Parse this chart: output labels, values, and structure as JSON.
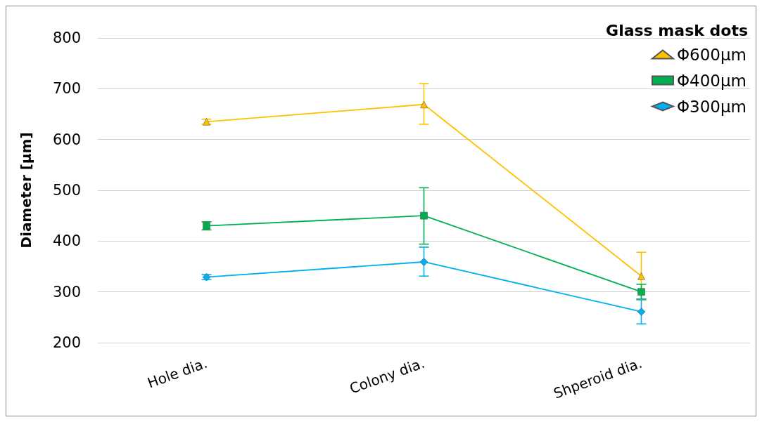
{
  "chart_data": {
    "type": "line",
    "ylabel": "Diameter [μm]",
    "legend_title": "Glass mask dots",
    "legend": "top right",
    "grid": "y",
    "line_style": "solid",
    "categories": [
      "Hole dia.",
      "Colony dia.",
      "Shperoid dia."
    ],
    "ylim": [
      200,
      800
    ],
    "yticks": [
      200,
      300,
      400,
      500,
      600,
      700,
      800
    ],
    "series": [
      {
        "name": "Φ600μm",
        "color": "#ffc000",
        "marker": "triangle",
        "values": [
          635,
          669,
          331
        ],
        "errors": [
          5,
          [
            630,
            710
          ],
          47
        ]
      },
      {
        "name": "Φ400μm",
        "color": "#00b050",
        "marker": "square",
        "values": [
          430,
          450,
          300
        ],
        "errors": [
          8,
          [
            394,
            505
          ],
          15
        ]
      },
      {
        "name": "Φ300μm",
        "color": "#00b0f0",
        "marker": "diamond",
        "values": [
          329,
          359,
          261
        ],
        "errors": [
          5,
          [
            331,
            388
          ],
          [
            237,
            286
          ]
        ]
      }
    ]
  }
}
